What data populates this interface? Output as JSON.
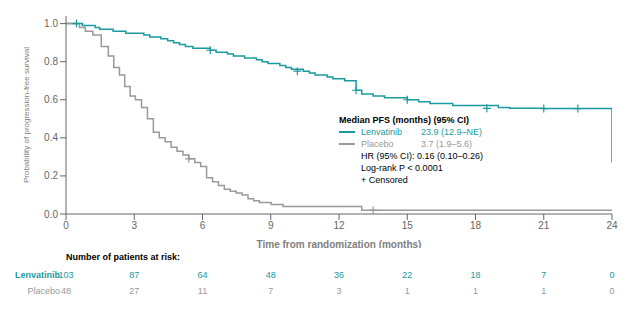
{
  "chart_data": {
    "type": "line",
    "xlabel": "Time from randomization (months)",
    "ylabel": "Probability of progression-free survival",
    "xlim": [
      0,
      24
    ],
    "ylim": [
      0.0,
      1.04
    ],
    "xticks": [
      0,
      3,
      6,
      9,
      12,
      15,
      18,
      21,
      24
    ],
    "yticks": [
      {
        "value": 0.0,
        "label": "0.0"
      },
      0.2,
      0.4,
      0.6,
      0.8,
      {
        "value": 1.0,
        "label": "1.0"
      }
    ],
    "grid": false,
    "annotations": {
      "title": "Median PFS (months) (95% CI)",
      "lines": [
        "HR (95% CI): 0.16 (0.10–0.26)",
        "Log-rank P < 0.0001",
        "+ Censored"
      ]
    },
    "series": [
      {
        "name": "Lenvatinib",
        "color": "#1a9aa0",
        "line_style": "step",
        "marker": "plus",
        "median": "23.9 (12.9–NE)",
        "x": [
          0,
          0.46,
          0.72,
          0.95,
          1.28,
          1.48,
          1.84,
          2.07,
          2.37,
          2.63,
          2.96,
          3.42,
          3.68,
          3.91,
          4.17,
          4.47,
          4.73,
          4.99,
          5.25,
          5.58,
          5.81,
          6.08,
          6.34,
          6.6,
          6.84,
          7.1,
          7.36,
          7.62,
          7.85,
          8.11,
          8.37,
          8.62,
          8.88,
          9.14,
          9.4,
          9.66,
          9.91,
          10.17,
          10.43,
          10.7,
          10.95,
          11.21,
          11.48,
          11.73,
          11.99,
          12.25,
          12.75,
          13.0,
          13.5,
          14.0,
          15.0,
          15.5,
          16.0,
          16.5,
          17.0,
          17.5,
          18.0,
          19.0,
          19.5,
          20.0,
          21.0,
          21.5,
          22.0,
          22.5,
          23.0,
          23.5,
          24.0
        ],
        "values": [
          1.0,
          1.0,
          0.99,
          0.99,
          0.98,
          0.97,
          0.97,
          0.96,
          0.96,
          0.95,
          0.95,
          0.94,
          0.93,
          0.93,
          0.92,
          0.91,
          0.9,
          0.89,
          0.88,
          0.87,
          0.87,
          0.87,
          0.86,
          0.85,
          0.85,
          0.84,
          0.83,
          0.83,
          0.82,
          0.82,
          0.81,
          0.8,
          0.79,
          0.79,
          0.78,
          0.77,
          0.76,
          0.76,
          0.75,
          0.74,
          0.73,
          0.73,
          0.72,
          0.71,
          0.71,
          0.7,
          0.65,
          0.63,
          0.62,
          0.61,
          0.6,
          0.59,
          0.58,
          0.58,
          0.57,
          0.57,
          0.57,
          0.56,
          0.555,
          0.555,
          0.554,
          0.554,
          0.554,
          0.554,
          0.554,
          0.554,
          0.27
        ],
        "censored_x": [
          0.46,
          6.34,
          10.17,
          12.75,
          15.0,
          18.5,
          21.0,
          22.5
        ],
        "censored_values": [
          1.0,
          0.86,
          0.75,
          0.65,
          0.6,
          0.555,
          0.554,
          0.554
        ]
      },
      {
        "name": "Placebo",
        "color": "#999999",
        "line_style": "step",
        "marker": "plus",
        "median": "3.7 (1.9–5.6)",
        "x": [
          0,
          0.36,
          0.59,
          0.85,
          1.18,
          1.55,
          1.86,
          2.1,
          2.35,
          2.58,
          2.82,
          3.05,
          3.32,
          3.58,
          3.84,
          4.1,
          4.36,
          4.62,
          4.88,
          5.14,
          5.4,
          5.66,
          5.92,
          6.18,
          6.44,
          6.7,
          6.96,
          7.22,
          7.48,
          7.74,
          8.0,
          8.25,
          8.5,
          8.76,
          9.02,
          9.28,
          9.54,
          9.8,
          10.06,
          10.32,
          10.58,
          10.84,
          11.1,
          11.36,
          11.62,
          11.88,
          12.14,
          12.4,
          13.0,
          24.0
        ],
        "values": [
          1.0,
          1.0,
          0.98,
          0.96,
          0.94,
          0.88,
          0.83,
          0.77,
          0.73,
          0.67,
          0.62,
          0.6,
          0.56,
          0.5,
          0.43,
          0.4,
          0.38,
          0.35,
          0.33,
          0.31,
          0.29,
          0.27,
          0.25,
          0.19,
          0.17,
          0.15,
          0.13,
          0.12,
          0.11,
          0.1,
          0.08,
          0.07,
          0.06,
          0.06,
          0.05,
          0.05,
          0.04,
          0.04,
          0.04,
          0.04,
          0.04,
          0.04,
          0.04,
          0.04,
          0.04,
          0.04,
          0.04,
          0.04,
          0.02,
          0.02
        ],
        "censored_x": [
          5.4,
          13.5
        ],
        "censored_values": [
          0.29,
          0.02
        ]
      }
    ],
    "risk_table": {
      "title": "Number of patients at risk:",
      "x": [
        0,
        3,
        6,
        9,
        12,
        15,
        18,
        21,
        24
      ],
      "rows": [
        {
          "name": "Lenvatinib",
          "values": [
            103,
            87,
            64,
            48,
            36,
            22,
            18,
            7,
            0
          ]
        },
        {
          "name": "Placebo",
          "values": [
            48,
            27,
            11,
            7,
            3,
            1,
            1,
            1,
            0
          ]
        }
      ]
    }
  }
}
